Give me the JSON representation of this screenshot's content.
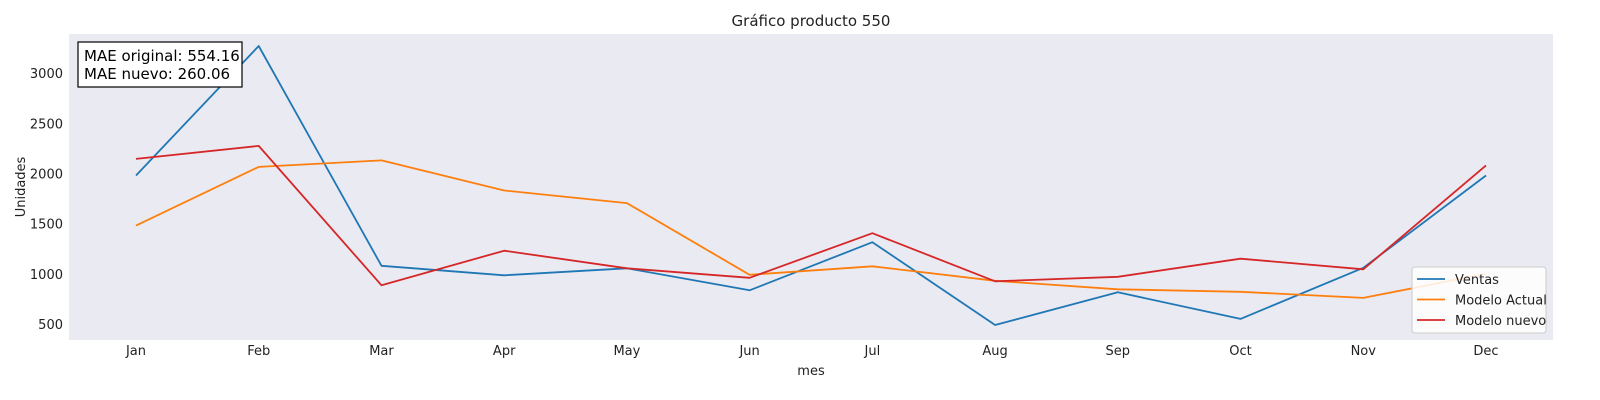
{
  "chart_data": {
    "type": "line",
    "title": "Gráfico producto 550",
    "xlabel": "mes",
    "ylabel": "Unidades",
    "categories": [
      "Jan",
      "Feb",
      "Mar",
      "Apr",
      "May",
      "Jun",
      "Jul",
      "Aug",
      "Sep",
      "Oct",
      "Nov",
      "Dec"
    ],
    "yticks": [
      500,
      1000,
      1500,
      2000,
      2500,
      3000
    ],
    "ylim": [
      340,
      3390
    ],
    "grid": false,
    "background": "#eaeaf2",
    "legend_position": "lower-right",
    "series": [
      {
        "name": "Ventas",
        "color": "#1f77b4",
        "values": [
          1980,
          3270,
          1080,
          985,
          1055,
          835,
          1315,
          490,
          815,
          550,
          1060,
          1980
        ]
      },
      {
        "name": "Modelo Actual",
        "color": "#ff7f0e",
        "values": [
          1480,
          2065,
          2130,
          1830,
          1705,
          990,
          1075,
          930,
          845,
          820,
          760,
          1000
        ]
      },
      {
        "name": "Modelo nuevo",
        "color": "#d62728",
        "values": [
          2145,
          2275,
          885,
          1230,
          1055,
          960,
          1405,
          925,
          970,
          1150,
          1045,
          2080
        ]
      }
    ],
    "annotation": {
      "line1": "MAE original: 554.16",
      "line2": "MAE nuevo: 260.06"
    }
  }
}
